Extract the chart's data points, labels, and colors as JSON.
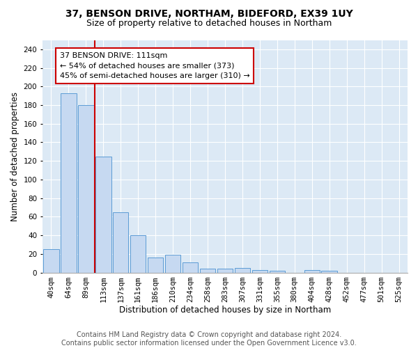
{
  "title1": "37, BENSON DRIVE, NORTHAM, BIDEFORD, EX39 1UY",
  "title2": "Size of property relative to detached houses in Northam",
  "xlabel": "Distribution of detached houses by size in Northam",
  "ylabel": "Number of detached properties",
  "categories": [
    "40sqm",
    "64sqm",
    "89sqm",
    "113sqm",
    "137sqm",
    "161sqm",
    "186sqm",
    "210sqm",
    "234sqm",
    "258sqm",
    "283sqm",
    "307sqm",
    "331sqm",
    "355sqm",
    "380sqm",
    "404sqm",
    "428sqm",
    "452sqm",
    "477sqm",
    "501sqm",
    "525sqm"
  ],
  "values": [
    25,
    193,
    180,
    125,
    65,
    40,
    16,
    19,
    11,
    4,
    4,
    5,
    3,
    2,
    0,
    3,
    2,
    0,
    0,
    0,
    0
  ],
  "bar_color": "#c6d9f1",
  "bar_edge_color": "#5b9bd5",
  "vline_x": 2.5,
  "vline_color": "#cc0000",
  "annotation_text": "37 BENSON DRIVE: 111sqm\n← 54% of detached houses are smaller (373)\n45% of semi-detached houses are larger (310) →",
  "annotation_box_color": "white",
  "annotation_box_edge": "#cc0000",
  "ylim": [
    0,
    250
  ],
  "yticks": [
    0,
    20,
    40,
    60,
    80,
    100,
    120,
    140,
    160,
    180,
    200,
    220,
    240
  ],
  "footer": "Contains HM Land Registry data © Crown copyright and database right 2024.\nContains public sector information licensed under the Open Government Licence v3.0.",
  "bg_color": "#dce9f5",
  "grid_color": "white",
  "title1_fontsize": 10,
  "title2_fontsize": 9,
  "xlabel_fontsize": 8.5,
  "ylabel_fontsize": 8.5,
  "footer_fontsize": 7,
  "tick_fontsize": 7.5,
  "ann_fontsize": 8
}
